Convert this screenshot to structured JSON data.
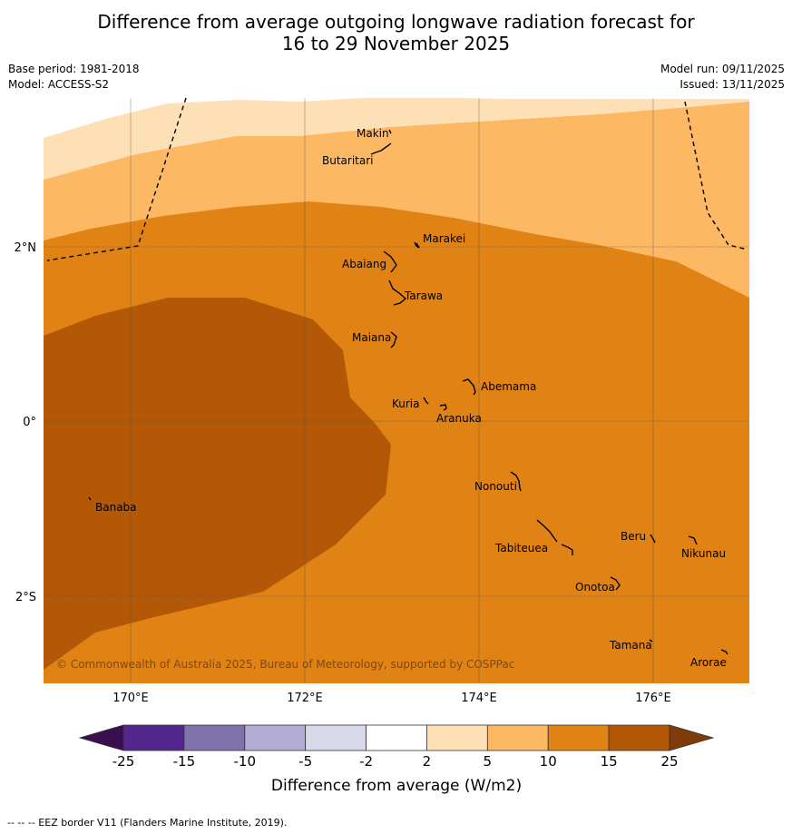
{
  "title_line1": "Difference from average outgoing longwave radiation forecast for",
  "title_line2": "16 to 29 November 2025",
  "base_period": "Base period: 1981-2018",
  "model": "Model: ACCESS-S2",
  "model_run": "Model run: 09/11/2025",
  "issued": "Issued: 13/11/2025",
  "copyright": "© Commonwealth of Australia 2025, Bureau of Meteorology, supported by COSPPac",
  "lat_labels": [
    "2°N",
    "0°",
    "2°S"
  ],
  "lon_labels": [
    "170°E",
    "172°E",
    "174°E",
    "176°E"
  ],
  "places": [
    "Makin",
    "Butaritari",
    "Marakei",
    "Abaiang",
    "Tarawa",
    "Maiana",
    "Abemama",
    "Kuria",
    "Aranuka",
    "Banaba",
    "Nonouti",
    "Tabiteuea",
    "Beru",
    "Nikunau",
    "Onotoa",
    "Tamana",
    "Arorae"
  ],
  "colorbar": {
    "title": "Difference from average (W/m2)",
    "ticks": [
      "-25",
      "-15",
      "-10",
      "-5",
      "-2",
      "2",
      "5",
      "10",
      "15",
      "25"
    ],
    "colors": [
      "#3b0f4f",
      "#54278f",
      "#8073ac",
      "#b2abd2",
      "#d8daeb",
      "#ffffff",
      "#fee0b6",
      "#fdb863",
      "#e08214",
      "#b35806",
      "#7f3b08"
    ]
  },
  "footer": "--  --  -- EEZ border V11 (Flanders Marine Institute, 2019)."
}
